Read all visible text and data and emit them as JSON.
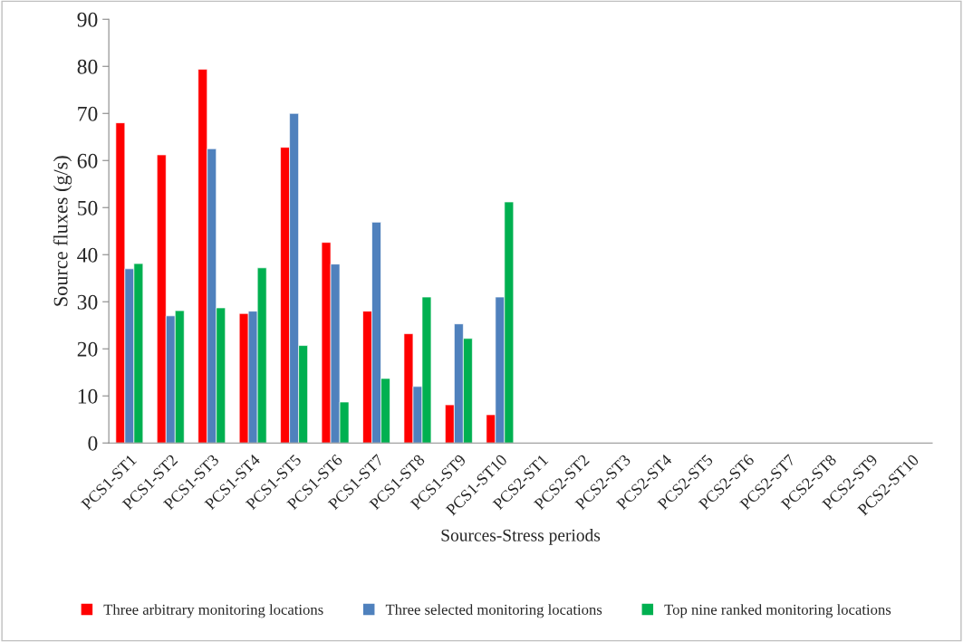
{
  "chart_data": {
    "type": "bar",
    "xlabel": "Sources-Stress periods",
    "ylabel": "Source fluxes (g/s)",
    "categories": [
      "PCS1-ST1",
      "PCS1-ST2",
      "PCS1-ST3",
      "PCS1-ST4",
      "PCS1-ST5",
      "PCS1-ST6",
      "PCS1-ST7",
      "PCS1-ST8",
      "PCS1-ST9",
      "PCS1-ST10",
      "PCS2-ST1",
      "PCS2-ST2",
      "PCS2-ST3",
      "PCS2-ST4",
      "PCS2-ST5",
      "PCS2-ST6",
      "PCS2-ST7",
      "PCS2-ST8",
      "PCS2-ST9",
      "PCS2-ST10"
    ],
    "series": [
      {
        "name": "Three arbitrary monitoring locations",
        "color": "#ff0000",
        "values": [
          68,
          61.2,
          79.4,
          27.5,
          62.8,
          42.6,
          28,
          23.2,
          8.1,
          6,
          null,
          null,
          null,
          null,
          null,
          null,
          null,
          null,
          null,
          null
        ]
      },
      {
        "name": "Three selected monitoring locations",
        "color": "#4f81bd",
        "values": [
          37,
          27,
          62.5,
          28,
          70,
          38,
          46.9,
          12,
          25.3,
          31,
          null,
          null,
          null,
          null,
          null,
          null,
          null,
          null,
          null,
          null
        ]
      },
      {
        "name": "Top nine ranked monitoring locations",
        "color": "#00b050",
        "values": [
          38.1,
          28.1,
          28.7,
          37.2,
          20.7,
          8.7,
          13.7,
          31,
          22.2,
          51.2,
          null,
          null,
          null,
          null,
          null,
          null,
          null,
          null,
          null,
          null
        ]
      }
    ],
    "ylim": [
      0,
      90
    ],
    "yticks": [
      0,
      10,
      20,
      30,
      40,
      50,
      60,
      70,
      80,
      90
    ],
    "grid": false,
    "legend": "bottom"
  }
}
